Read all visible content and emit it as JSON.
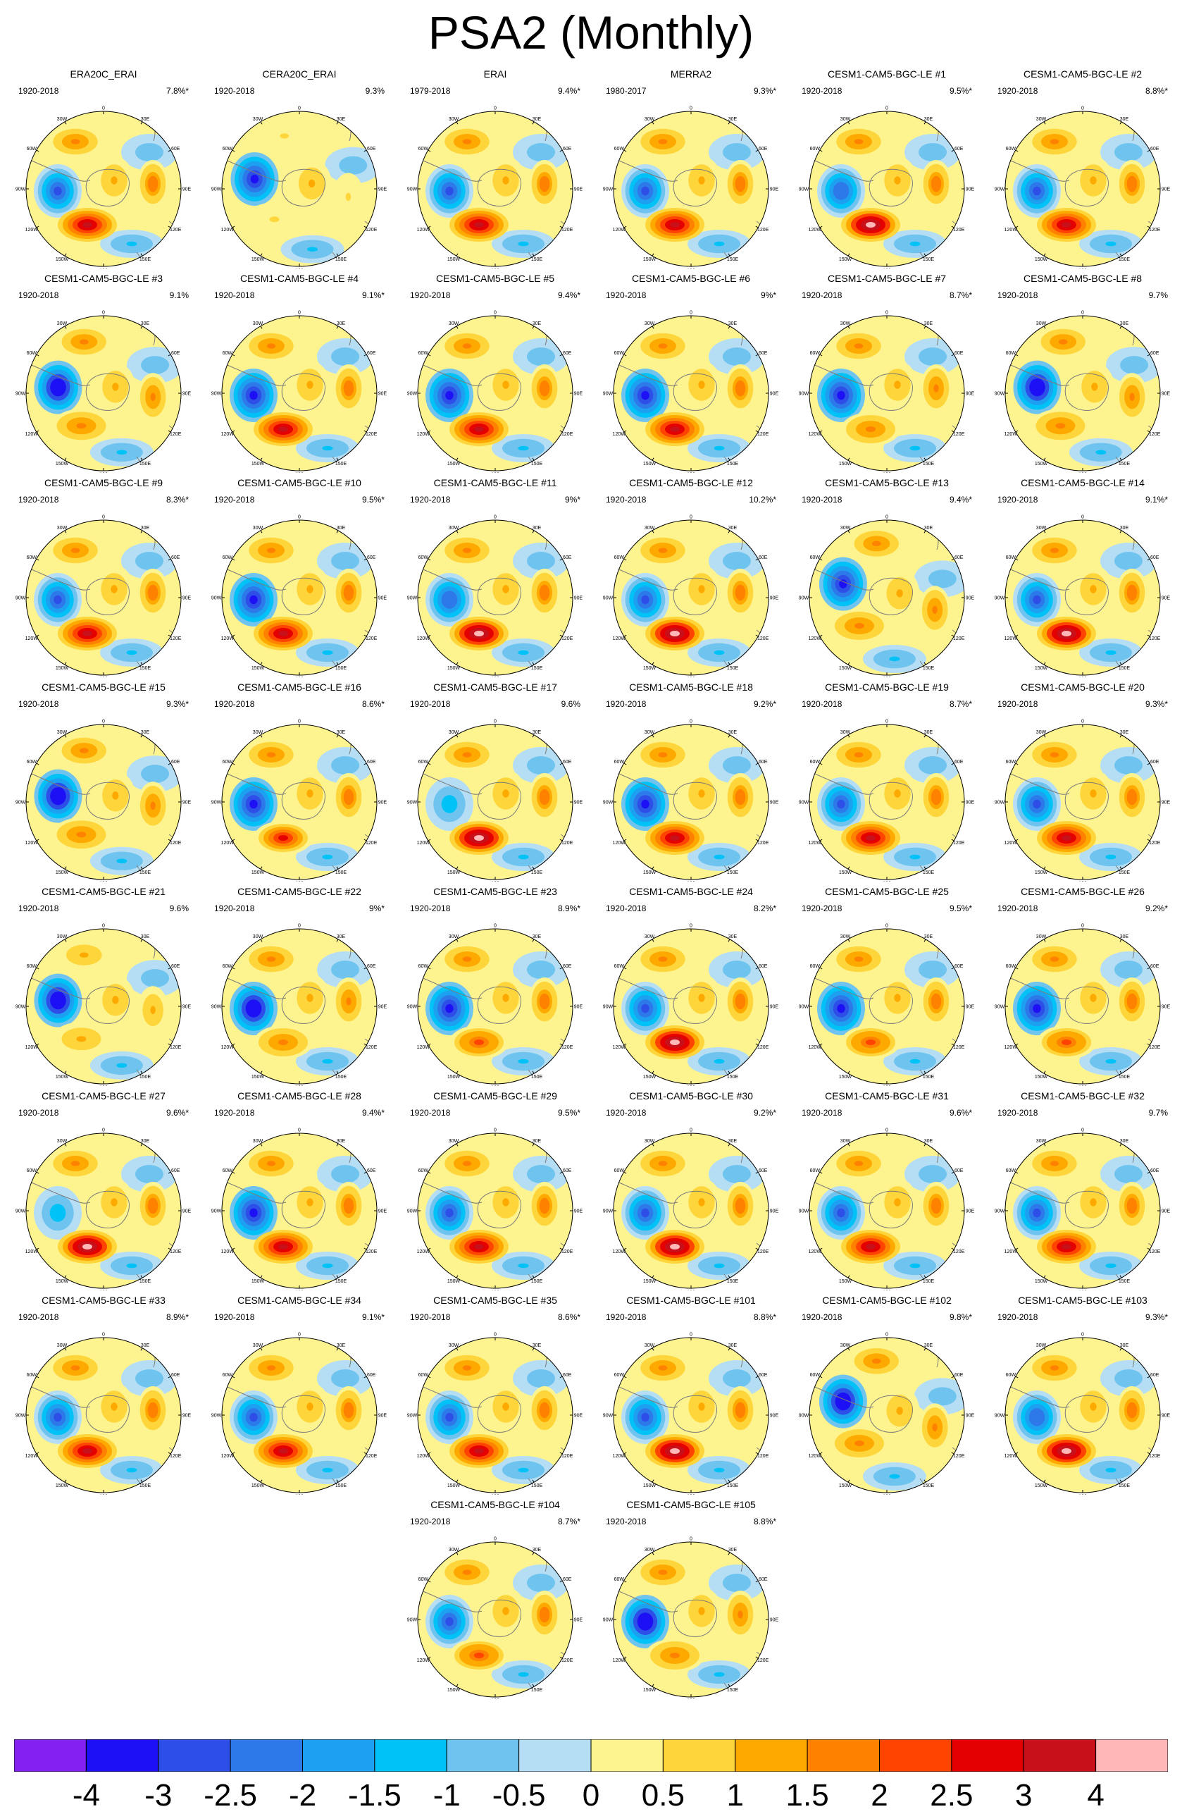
{
  "title": "PSA2 (Monthly)",
  "chart_data": {
    "type": "heatmap",
    "title": "PSA2 (Monthly)",
    "projection": "south-polar-stereographic",
    "longitude_labels": [
      "0",
      "30E",
      "60E",
      "90E",
      "120E",
      "150E",
      "180",
      "150W",
      "120W",
      "90W",
      "60W",
      "30W"
    ],
    "panels": [
      {
        "name": "ERA20C_ERAI",
        "years": "1920-2018",
        "variance": "7.8%*",
        "neg": -3.0,
        "pos": 3.0,
        "rot": 0
      },
      {
        "name": "CERA20C_ERAI",
        "years": "1920-2018",
        "variance": "9.3%",
        "neg": -3.5,
        "pos": 0.5,
        "rot": 15
      },
      {
        "name": "ERAI",
        "years": "1979-2018",
        "variance": "9.4%*",
        "neg": -3.0,
        "pos": 3.0,
        "rot": 0
      },
      {
        "name": "MERRA2",
        "years": "1980-2017",
        "variance": "9.3%*",
        "neg": -3.0,
        "pos": 3.0,
        "rot": 0
      },
      {
        "name": "CESM1-CAM5-BGC-LE #1",
        "years": "1920-2018",
        "variance": "9.5%*",
        "neg": -2.5,
        "pos": 4.0,
        "rot": 0
      },
      {
        "name": "CESM1-CAM5-BGC-LE #2",
        "years": "1920-2018",
        "variance": "8.8%*",
        "neg": -3.0,
        "pos": 3.0,
        "rot": 0
      },
      {
        "name": "CESM1-CAM5-BGC-LE #3",
        "years": "1920-2018",
        "variance": "9.1%",
        "neg": -4.0,
        "pos": 1.5,
        "rot": 10
      },
      {
        "name": "CESM1-CAM5-BGC-LE #4",
        "years": "1920-2018",
        "variance": "9.1%*",
        "neg": -3.5,
        "pos": 3.0,
        "rot": 0
      },
      {
        "name": "CESM1-CAM5-BGC-LE #5",
        "years": "1920-2018",
        "variance": "9.4%*",
        "neg": -3.5,
        "pos": 3.0,
        "rot": 0
      },
      {
        "name": "CESM1-CAM5-BGC-LE #6",
        "years": "1920-2018",
        "variance": "9%*",
        "neg": -3.5,
        "pos": 3.0,
        "rot": 0
      },
      {
        "name": "CESM1-CAM5-BGC-LE #7",
        "years": "1920-2018",
        "variance": "8.7%*",
        "neg": -3.5,
        "pos": 1.5,
        "rot": 0
      },
      {
        "name": "CESM1-CAM5-BGC-LE #8",
        "years": "1920-2018",
        "variance": "9.7%",
        "neg": -4.0,
        "pos": 1.5,
        "rot": 10
      },
      {
        "name": "CESM1-CAM5-BGC-LE #9",
        "years": "1920-2018",
        "variance": "8.3%*",
        "neg": -3.0,
        "pos": 3.0,
        "rot": 0
      },
      {
        "name": "CESM1-CAM5-BGC-LE #10",
        "years": "1920-2018",
        "variance": "9.5%*",
        "neg": -3.5,
        "pos": 3.0,
        "rot": 0
      },
      {
        "name": "CESM1-CAM5-BGC-LE #11",
        "years": "1920-2018",
        "variance": "9%*",
        "neg": -2.5,
        "pos": 4.0,
        "rot": 0
      },
      {
        "name": "CESM1-CAM5-BGC-LE #12",
        "years": "1920-2018",
        "variance": "10.2%*",
        "neg": -3.0,
        "pos": 4.0,
        "rot": 0
      },
      {
        "name": "CESM1-CAM5-BGC-LE #13",
        "years": "1920-2018",
        "variance": "9.4%*",
        "neg": -3.5,
        "pos": 1.5,
        "rot": 20
      },
      {
        "name": "CESM1-CAM5-BGC-LE #14",
        "years": "1920-2018",
        "variance": "9.1%*",
        "neg": -3.0,
        "pos": 4.0,
        "rot": 0
      },
      {
        "name": "CESM1-CAM5-BGC-LE #15",
        "years": "1920-2018",
        "variance": "9.3%*",
        "neg": -4.0,
        "pos": 1.5,
        "rot": 10
      },
      {
        "name": "CESM1-CAM5-BGC-LE #16",
        "years": "1920-2018",
        "variance": "8.6%*",
        "neg": -3.5,
        "pos": 2.5,
        "rot": 0
      },
      {
        "name": "CESM1-CAM5-BGC-LE #17",
        "years": "1920-2018",
        "variance": "9.6%",
        "neg": -1.5,
        "pos": 4.0,
        "rot": 0
      },
      {
        "name": "CESM1-CAM5-BGC-LE #18",
        "years": "1920-2018",
        "variance": "9.2%*",
        "neg": -3.5,
        "pos": 3.0,
        "rot": 0
      },
      {
        "name": "CESM1-CAM5-BGC-LE #19",
        "years": "1920-2018",
        "variance": "8.7%*",
        "neg": -3.0,
        "pos": 3.0,
        "rot": 0
      },
      {
        "name": "CESM1-CAM5-BGC-LE #20",
        "years": "1920-2018",
        "variance": "9.3%*",
        "neg": -3.0,
        "pos": 3.0,
        "rot": 0
      },
      {
        "name": "CESM1-CAM5-BGC-LE #21",
        "years": "1920-2018",
        "variance": "9.6%",
        "neg": -4.0,
        "pos": 1.0,
        "rot": 10
      },
      {
        "name": "CESM1-CAM5-BGC-LE #22",
        "years": "1920-2018",
        "variance": "9%*",
        "neg": -4.0,
        "pos": 1.5,
        "rot": 0
      },
      {
        "name": "CESM1-CAM5-BGC-LE #23",
        "years": "1920-2018",
        "variance": "8.9%*",
        "neg": -3.5,
        "pos": 2.0,
        "rot": 0
      },
      {
        "name": "CESM1-CAM5-BGC-LE #24",
        "years": "1920-2018",
        "variance": "8.2%*",
        "neg": -3.0,
        "pos": 4.0,
        "rot": 0
      },
      {
        "name": "CESM1-CAM5-BGC-LE #25",
        "years": "1920-2018",
        "variance": "9.5%*",
        "neg": -3.5,
        "pos": 2.0,
        "rot": 0
      },
      {
        "name": "CESM1-CAM5-BGC-LE #26",
        "years": "1920-2018",
        "variance": "9.2%*",
        "neg": -3.5,
        "pos": 2.0,
        "rot": 0
      },
      {
        "name": "CESM1-CAM5-BGC-LE #27",
        "years": "1920-2018",
        "variance": "9.6%*",
        "neg": -1.5,
        "pos": 4.0,
        "rot": 0
      },
      {
        "name": "CESM1-CAM5-BGC-LE #28",
        "years": "1920-2018",
        "variance": "9.4%*",
        "neg": -3.5,
        "pos": 3.0,
        "rot": 0
      },
      {
        "name": "CESM1-CAM5-BGC-LE #29",
        "years": "1920-2018",
        "variance": "9.5%*",
        "neg": -3.0,
        "pos": 3.0,
        "rot": 0
      },
      {
        "name": "CESM1-CAM5-BGC-LE #30",
        "years": "1920-2018",
        "variance": "9.2%*",
        "neg": -3.0,
        "pos": 4.0,
        "rot": 0
      },
      {
        "name": "CESM1-CAM5-BGC-LE #31",
        "years": "1920-2018",
        "variance": "9.6%*",
        "neg": -3.0,
        "pos": 3.0,
        "rot": 0
      },
      {
        "name": "CESM1-CAM5-BGC-LE #32",
        "years": "1920-2018",
        "variance": "9.7%",
        "neg": -3.0,
        "pos": 3.0,
        "rot": 0
      },
      {
        "name": "CESM1-CAM5-BGC-LE #33",
        "years": "1920-2018",
        "variance": "8.9%*",
        "neg": -3.0,
        "pos": 3.0,
        "rot": 0
      },
      {
        "name": "CESM1-CAM5-BGC-LE #34",
        "years": "1920-2018",
        "variance": "9.1%*",
        "neg": -3.0,
        "pos": 3.0,
        "rot": 0
      },
      {
        "name": "CESM1-CAM5-BGC-LE #35",
        "years": "1920-2018",
        "variance": "8.6%*",
        "neg": -3.0,
        "pos": 3.0,
        "rot": 0
      },
      {
        "name": "CESM1-CAM5-BGC-LE #101",
        "years": "1920-2018",
        "variance": "8.8%*",
        "neg": -3.0,
        "pos": 4.0,
        "rot": 0
      },
      {
        "name": "CESM1-CAM5-BGC-LE #102",
        "years": "1920-2018",
        "variance": "9.8%*",
        "neg": -4.0,
        "pos": 1.5,
        "rot": 20
      },
      {
        "name": "CESM1-CAM5-BGC-LE #103",
        "years": "1920-2018",
        "variance": "9.3%*",
        "neg": -2.5,
        "pos": 4.0,
        "rot": 0
      },
      {
        "name": "CESM1-CAM5-BGC-LE #104",
        "years": "1920-2018",
        "variance": "8.7%*",
        "neg": -3.0,
        "pos": 2.0,
        "rot": 0
      },
      {
        "name": "CESM1-CAM5-BGC-LE #105",
        "years": "1920-2018",
        "variance": "8.8%*",
        "neg": -4.0,
        "pos": 1.5,
        "rot": 0
      }
    ],
    "colorbar": {
      "labels": [
        "-4",
        "-3",
        "-2.5",
        "-2",
        "-1.5",
        "-1",
        "-0.5",
        "0",
        "0.5",
        "1",
        "1.5",
        "2",
        "2.5",
        "3",
        "4"
      ],
      "colors": [
        "#8322f0",
        "#1d10f5",
        "#2d4fe8",
        "#2e79e9",
        "#1ea0f0",
        "#00c2f6",
        "#6fc3ef",
        "#b5def5",
        "#fef48f",
        "#fed53a",
        "#fea900",
        "#fe8200",
        "#fe4400",
        "#e40000",
        "#c8101b",
        "#ffb7b7"
      ]
    }
  }
}
